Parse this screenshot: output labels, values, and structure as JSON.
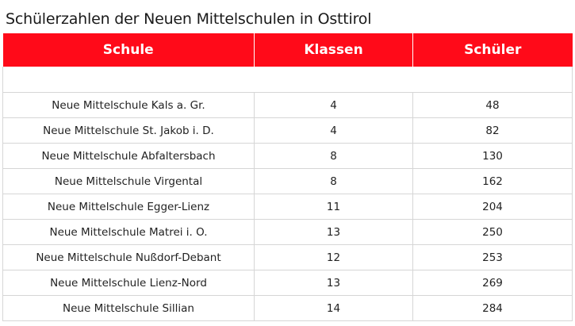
{
  "title": "Schülerzahlen der Neuen Mittelschulen in Osttirol",
  "table": {
    "headers": [
      "Schule",
      "Klassen",
      "Schüler"
    ],
    "rows": [
      [
        "Neue Mittelschule Kals a. Gr.",
        "4",
        "48"
      ],
      [
        "Neue Mittelschule St. Jakob i. D.",
        "4",
        "82"
      ],
      [
        "Neue Mittelschule Abfaltersbach",
        "8",
        "130"
      ],
      [
        "Neue Mittelschule Virgental",
        "8",
        "162"
      ],
      [
        "Neue Mittelschule Egger-Lienz",
        "11",
        "204"
      ],
      [
        "Neue Mittelschule Matrei i. O.",
        "13",
        "250"
      ],
      [
        "Neue Mittelschule Nußdorf-Debant",
        "12",
        "253"
      ],
      [
        "Neue Mittelschule Lienz-Nord",
        "13",
        "269"
      ],
      [
        "Neue Mittelschule Sillian",
        "14",
        "284"
      ]
    ]
  },
  "colors": {
    "header_bg": "#ff0a19",
    "header_text": "#ffffff",
    "grid": "#d6d6d6"
  }
}
